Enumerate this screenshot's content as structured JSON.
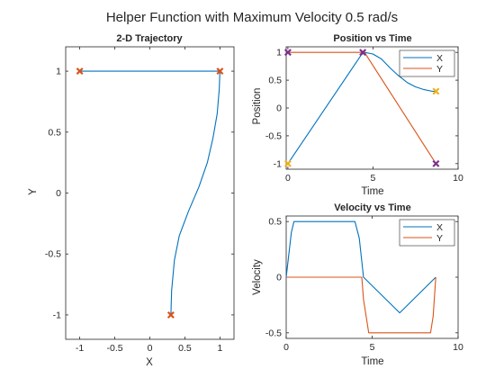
{
  "figure": {
    "title": "Helper Function with Maximum Velocity 0.5 rad/s"
  },
  "colors": {
    "x_series": "#0072BD",
    "y_series": "#D95319",
    "red_marker": "#D95319",
    "yellow_marker": "#EDB120",
    "purple_marker": "#7E2F8E",
    "axes": "#262626",
    "background": "#ffffff"
  },
  "chart_data": [
    {
      "id": "trajectory",
      "type": "line",
      "title": "2-D Trajectory",
      "xlabel": "X",
      "ylabel": "Y",
      "xlim": [
        -1.2,
        1.2
      ],
      "ylim": [
        -1.2,
        1.2
      ],
      "xticks": [
        -1,
        -0.5,
        0,
        0.5,
        1
      ],
      "yticks": [
        -1,
        -0.5,
        0,
        0.5,
        1
      ],
      "xtick_labels": [
        "-1",
        "-0.5",
        "0",
        "0.5",
        "1"
      ],
      "ytick_labels": [
        "-1",
        "-0.5",
        "0",
        "0.5",
        "1"
      ],
      "grid": false,
      "series": [
        {
          "color_key": "x_series",
          "x": [
            0.3,
            0.31,
            0.35,
            0.42,
            0.55,
            0.7,
            0.82,
            0.9,
            0.96,
            0.99,
            1.0,
            0.95,
            0.6,
            0.0,
            -1.0
          ],
          "y": [
            -1.0,
            -0.8,
            -0.55,
            -0.35,
            -0.15,
            0.05,
            0.25,
            0.45,
            0.65,
            0.85,
            1.0,
            1.0,
            1.0,
            1.0,
            1.0
          ]
        }
      ],
      "markers": [
        {
          "x": -1.0,
          "y": 1.0,
          "color_key": "red_marker",
          "shape": "x"
        },
        {
          "x": 1.0,
          "y": 1.0,
          "color_key": "red_marker",
          "shape": "x"
        },
        {
          "x": 0.3,
          "y": -1.0,
          "color_key": "red_marker",
          "shape": "x"
        }
      ]
    },
    {
      "id": "position",
      "type": "line",
      "title": "Position vs Time",
      "xlabel": "Time",
      "ylabel": "Position",
      "xlim": [
        -0.1,
        10.0
      ],
      "ylim": [
        -1.1,
        1.1
      ],
      "xticks": [
        0,
        5,
        10
      ],
      "yticks": [
        -1,
        -0.5,
        0,
        0.5,
        1
      ],
      "xtick_labels": [
        "0",
        "5",
        "10"
      ],
      "ytick_labels": [
        "-1",
        "-0.5",
        "0",
        "0.5",
        "1"
      ],
      "grid": false,
      "legend": {
        "position": "top-right",
        "entries": [
          "X",
          "Y"
        ]
      },
      "series": [
        {
          "name": "X",
          "color_key": "x_series",
          "x": [
            0.0,
            4.3,
            4.5,
            5.0,
            5.5,
            6.0,
            6.5,
            7.0,
            7.5,
            8.0,
            8.5,
            8.7
          ],
          "y": [
            -1.0,
            0.95,
            1.0,
            0.97,
            0.88,
            0.72,
            0.58,
            0.46,
            0.38,
            0.33,
            0.3,
            0.3
          ]
        },
        {
          "name": "Y",
          "color_key": "y_series",
          "x": [
            0.0,
            4.3,
            4.5,
            8.7
          ],
          "y": [
            1.0,
            1.0,
            1.0,
            -1.0
          ]
        }
      ],
      "markers": [
        {
          "x": 0.0,
          "y": 1.0,
          "color_key": "purple_marker",
          "shape": "x"
        },
        {
          "x": 0.0,
          "y": -1.0,
          "color_key": "yellow_marker",
          "shape": "x"
        },
        {
          "x": 4.4,
          "y": 1.0,
          "color_key": "purple_marker",
          "shape": "x"
        },
        {
          "x": 8.7,
          "y": 0.3,
          "color_key": "yellow_marker",
          "shape": "x"
        },
        {
          "x": 8.7,
          "y": -1.0,
          "color_key": "purple_marker",
          "shape": "x"
        }
      ]
    },
    {
      "id": "velocity",
      "type": "line",
      "title": "Velocity vs Time",
      "xlabel": "Time",
      "ylabel": "Velocity",
      "xlim": [
        0.0,
        10.0
      ],
      "ylim": [
        -0.55,
        0.55
      ],
      "xticks": [
        0,
        5,
        10
      ],
      "yticks": [
        -0.5,
        0,
        0.5
      ],
      "xtick_labels": [
        "0",
        "5",
        "10"
      ],
      "ytick_labels": [
        "-0.5",
        "0",
        "0.5"
      ],
      "grid": false,
      "legend": {
        "position": "top-right",
        "entries": [
          "X",
          "Y"
        ]
      },
      "series": [
        {
          "name": "X",
          "color_key": "x_series",
          "x": [
            0.0,
            0.3,
            0.45,
            4.0,
            4.25,
            4.5,
            6.6,
            8.7
          ],
          "y": [
            0.0,
            0.4,
            0.5,
            0.5,
            0.35,
            0.0,
            -0.32,
            0.0
          ]
        },
        {
          "name": "Y",
          "color_key": "y_series",
          "x": [
            0.0,
            4.4,
            4.5,
            4.8,
            8.4,
            8.55,
            8.7
          ],
          "y": [
            0.0,
            0.0,
            -0.2,
            -0.5,
            -0.5,
            -0.35,
            0.0
          ]
        }
      ]
    }
  ]
}
